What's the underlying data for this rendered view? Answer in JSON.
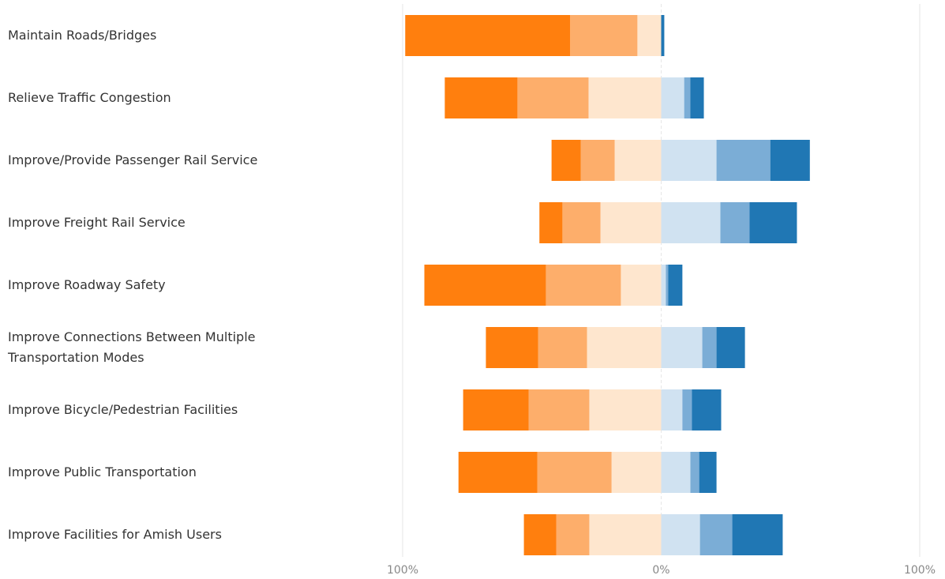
{
  "chart_data": {
    "type": "diverging_bar",
    "categories": [
      "Maintain Roads/Bridges",
      "Relieve Traffic Congestion",
      "Improve/Provide Passenger Rail Service",
      "Improve Freight Rail Service",
      "Improve Roadway Safety",
      "Improve Connections Between Multiple Transportation Modes",
      "Improve Bicycle/Pedestrian Facilities",
      "Improve Public Transportation",
      "Improve Facilities for Amish Users"
    ],
    "series": [
      {
        "color": "#ff7f0e",
        "values": [
          63.8,
          28.1,
          11.3,
          8.9,
          47.0,
          20.2,
          25.3,
          30.5,
          12.5
        ]
      },
      {
        "color": "#fdae6b",
        "values": [
          26.0,
          27.5,
          13.1,
          14.7,
          29.0,
          18.9,
          23.5,
          28.7,
          12.8
        ]
      },
      {
        "color": "#fee6ce",
        "values": [
          9.2,
          28.1,
          18.0,
          23.5,
          15.6,
          28.7,
          27.8,
          19.2,
          27.8
        ]
      },
      {
        "color": "#d0e2f1",
        "values": [
          0,
          8.9,
          21.4,
          22.9,
          1.8,
          15.9,
          8.2,
          11.3,
          15.0
        ]
      },
      {
        "color": "#7badd6",
        "values": [
          0,
          2.4,
          20.8,
          11.3,
          0.9,
          5.5,
          3.7,
          3.4,
          12.5
        ]
      },
      {
        "color": "#2077b4",
        "values": [
          1.2,
          5.2,
          15.3,
          18.3,
          5.5,
          11.0,
          11.3,
          6.7,
          19.5
        ]
      }
    ],
    "xlim": [
      -100,
      100
    ],
    "xticks": [
      {
        "value": -100,
        "label": "100%"
      },
      {
        "value": 0,
        "label": "0%"
      },
      {
        "value": 100,
        "label": "100%"
      }
    ],
    "grid": true
  }
}
